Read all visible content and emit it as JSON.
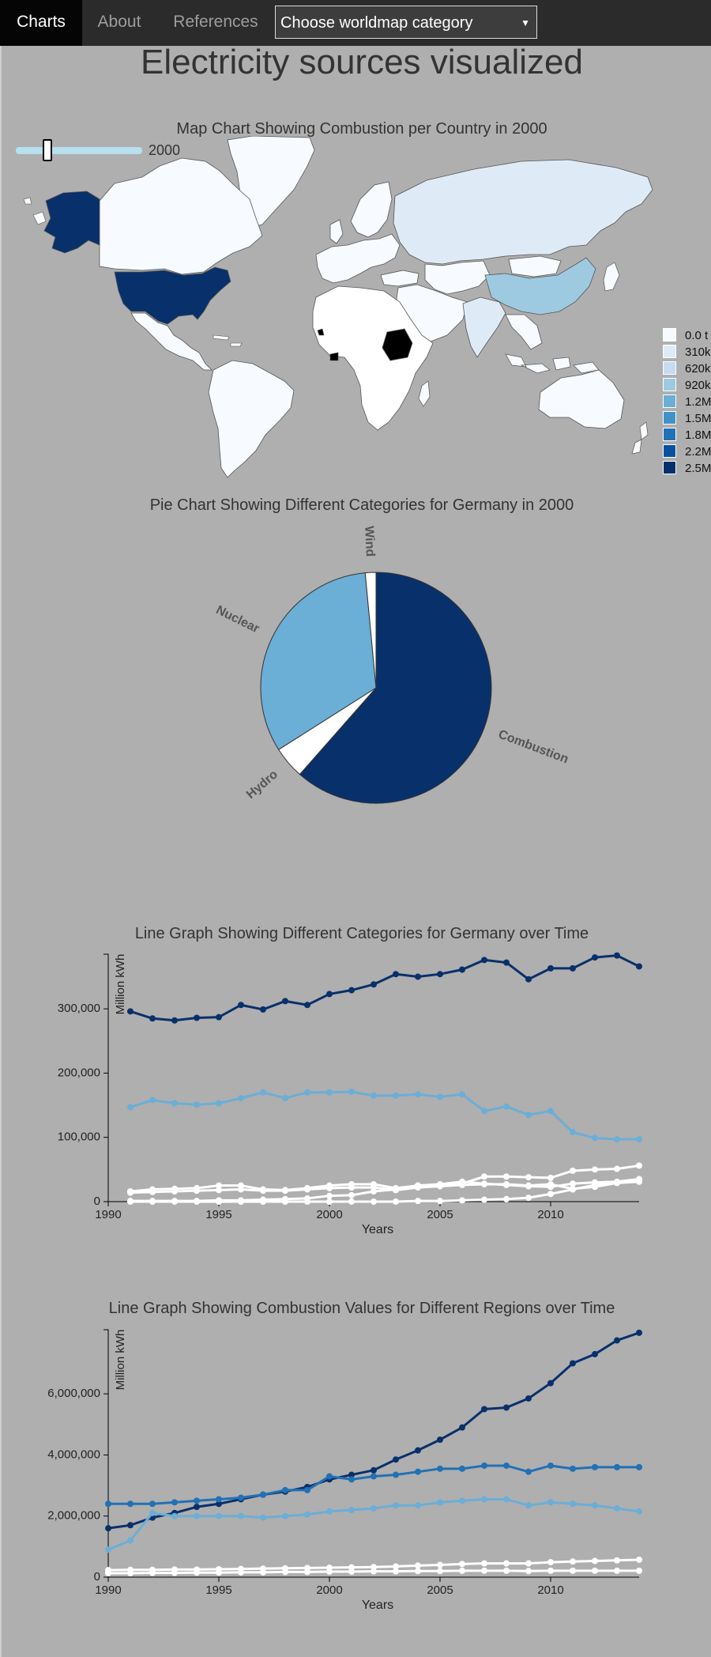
{
  "nav": {
    "items": [
      {
        "label": "Charts",
        "active": true
      },
      {
        "label": "About",
        "active": false
      },
      {
        "label": "References",
        "active": false
      }
    ],
    "select_value": "Choose worldmap category"
  },
  "page_title": "Electricity sources visualized",
  "map": {
    "title": "Map Chart Showing Combustion per Country in 2000",
    "slider_value": "2000",
    "slider_fraction": 0.24,
    "legend": [
      {
        "label": "0.0 t",
        "color": "#f7fbff"
      },
      {
        "label": "310k",
        "color": "#deebf7"
      },
      {
        "label": "620k",
        "color": "#c6dbef"
      },
      {
        "label": "920k",
        "color": "#9ecae1"
      },
      {
        "label": "1.2M",
        "color": "#6baed6"
      },
      {
        "label": "1.5M",
        "color": "#4292c6"
      },
      {
        "label": "1.8M",
        "color": "#2171b5"
      },
      {
        "label": "2.2M",
        "color": "#08519c"
      },
      {
        "label": "2.5M",
        "color": "#08306b"
      }
    ]
  },
  "chart_data": [
    {
      "type": "pie",
      "title": "Pie Chart Showing Different Categories for Germany in 2000",
      "slices": [
        {
          "label": "Combustion",
          "value": 61.5,
          "color": "#08306b"
        },
        {
          "label": "Hydro",
          "value": 4.5,
          "color": "#ffffff"
        },
        {
          "label": "Nuclear",
          "value": 32.5,
          "color": "#6baed6"
        },
        {
          "label": "Wind",
          "value": 1.5,
          "color": "#ffffff"
        }
      ]
    },
    {
      "type": "line",
      "title": "Line Graph Showing Different Categories for Germany over Time",
      "xlabel": "Years",
      "ylabel": "Million kWh",
      "xlim": [
        1990,
        2014
      ],
      "ylim": [
        0,
        385000
      ],
      "xticks": [
        1990,
        1995,
        2000,
        2005,
        2010
      ],
      "xtick_labels": [
        "1990",
        "1995",
        "2000",
        "2005",
        "2010"
      ],
      "yticks": [
        0,
        100000,
        200000,
        300000
      ],
      "ytick_labels": [
        "0",
        "100,000",
        "200,000",
        "300,000"
      ],
      "x": [
        1991,
        1992,
        1993,
        1994,
        1995,
        1996,
        1997,
        1998,
        1999,
        2000,
        2001,
        2002,
        2003,
        2004,
        2005,
        2006,
        2007,
        2008,
        2009,
        2010,
        2011,
        2012,
        2013,
        2014
      ],
      "series": [
        {
          "color": "#08306b",
          "values": [
            296000,
            285000,
            282000,
            286000,
            287000,
            306000,
            299000,
            312000,
            306000,
            323000,
            329000,
            338000,
            354000,
            350000,
            354000,
            361000,
            376000,
            372000,
            346000,
            363000,
            363000,
            380000,
            383000,
            366000
          ]
        },
        {
          "color": "#6baed6",
          "values": [
            147000,
            158000,
            153000,
            151000,
            153000,
            161000,
            170000,
            161000,
            170000,
            170000,
            171000,
            165000,
            165000,
            167000,
            163000,
            167000,
            141000,
            148000,
            135000,
            141000,
            108000,
            99000,
            97000,
            97000
          ]
        },
        {
          "color": "#ffffff",
          "values": [
            16000,
            19000,
            20000,
            21000,
            25000,
            25000,
            19000,
            18000,
            21000,
            25000,
            27000,
            27000,
            21000,
            25000,
            26000,
            28000,
            39000,
            39000,
            38000,
            37000,
            48000,
            50000,
            51000,
            56000
          ]
        },
        {
          "color": "#ffffff",
          "values": [
            14000,
            15000,
            16000,
            17000,
            18000,
            19000,
            17000,
            17000,
            19000,
            21000,
            22000,
            22000,
            18000,
            22000,
            24000,
            26000,
            27000,
            27000,
            25000,
            27000,
            20000,
            23000,
            29000,
            31000
          ]
        },
        {
          "color": "#ffffff",
          "values": [
            1000,
            1000,
            1000,
            1000,
            2000,
            2000,
            3000,
            4000,
            5000,
            9000,
            10000,
            16000,
            19000,
            25000,
            27000,
            31000,
            28000,
            26000,
            24000,
            23000,
            28000,
            30000,
            31000,
            35000
          ]
        },
        {
          "color": "#ffffff",
          "values": [
            0,
            0,
            0,
            0,
            0,
            0,
            0,
            0,
            0,
            0,
            0,
            0,
            0,
            1000,
            1000,
            2000,
            3000,
            4000,
            6000,
            12000,
            19000,
            26000,
            30000,
            35000
          ]
        }
      ]
    },
    {
      "type": "line",
      "title": "Line Graph Showing Combustion Values for Different Regions over Time",
      "xlabel": "Years",
      "ylabel": "Million kWh",
      "xlim": [
        1990,
        2014
      ],
      "ylim": [
        0,
        8100000
      ],
      "xticks": [
        1990,
        1995,
        2000,
        2005,
        2010
      ],
      "xtick_labels": [
        "1990",
        "1995",
        "2000",
        "2005",
        "2010"
      ],
      "yticks": [
        0,
        2000000,
        4000000,
        6000000
      ],
      "ytick_labels": [
        "0",
        "2,000,000",
        "4,000,000",
        "6,000,000"
      ],
      "x": [
        1990,
        1991,
        1992,
        1993,
        1994,
        1995,
        1996,
        1997,
        1998,
        1999,
        2000,
        2001,
        2002,
        2003,
        2004,
        2005,
        2006,
        2007,
        2008,
        2009,
        2010,
        2011,
        2012,
        2013,
        2014
      ],
      "series": [
        {
          "color": "#08306b",
          "values": [
            1600000,
            1700000,
            1950000,
            2100000,
            2300000,
            2400000,
            2550000,
            2700000,
            2800000,
            2950000,
            3200000,
            3350000,
            3500000,
            3850000,
            4150000,
            4500000,
            4900000,
            5500000,
            5550000,
            5850000,
            6350000,
            7000000,
            7300000,
            7750000,
            8000000
          ]
        },
        {
          "color": "#2171b5",
          "values": [
            2400000,
            2400000,
            2400000,
            2450000,
            2500000,
            2550000,
            2600000,
            2700000,
            2850000,
            2850000,
            3300000,
            3200000,
            3300000,
            3350000,
            3450000,
            3550000,
            3550000,
            3650000,
            3650000,
            3450000,
            3650000,
            3550000,
            3600000,
            3600000,
            3600000
          ]
        },
        {
          "color": "#6baed6",
          "values": [
            900000,
            1200000,
            2100000,
            2000000,
            2000000,
            2000000,
            2000000,
            1950000,
            2000000,
            2050000,
            2150000,
            2200000,
            2250000,
            2350000,
            2350000,
            2450000,
            2500000,
            2550000,
            2550000,
            2350000,
            2450000,
            2400000,
            2350000,
            2250000,
            2150000
          ]
        },
        {
          "color": "#ffffff",
          "values": [
            230000,
            240000,
            240000,
            250000,
            250000,
            260000,
            270000,
            280000,
            290000,
            300000,
            310000,
            320000,
            330000,
            350000,
            380000,
            400000,
            430000,
            450000,
            450000,
            450000,
            490000,
            510000,
            530000,
            550000,
            570000
          ]
        },
        {
          "color": "#ffffff",
          "values": [
            130000,
            130000,
            140000,
            140000,
            150000,
            150000,
            160000,
            160000,
            170000,
            170000,
            180000,
            180000,
            190000,
            190000,
            200000,
            200000,
            210000,
            210000,
            210000,
            200000,
            210000,
            210000,
            210000,
            210000,
            210000
          ]
        }
      ]
    }
  ]
}
